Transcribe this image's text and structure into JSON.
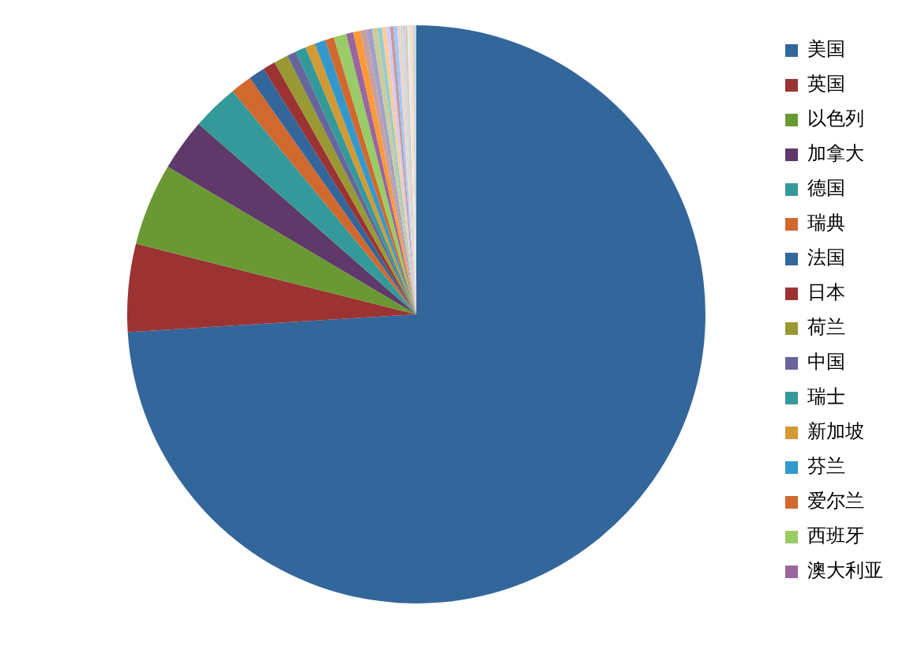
{
  "chart_data": {
    "type": "pie",
    "categories": [
      "美国",
      "英国",
      "以色列",
      "加拿大",
      "德国",
      "瑞典",
      "法国",
      "日本",
      "荷兰",
      "中国",
      "瑞士",
      "新加坡",
      "芬兰",
      "爱尔兰",
      "西班牙",
      "澳大利亚",
      null,
      null,
      null,
      null,
      null,
      null,
      null,
      null,
      null,
      null,
      null,
      null,
      null,
      null,
      null,
      null,
      null,
      null
    ],
    "values": [
      73.95,
      4.9,
      4.6,
      2.9,
      2.6,
      1.2,
      0.9,
      0.7,
      0.8,
      0.5,
      0.6,
      0.55,
      0.6,
      0.5,
      0.7,
      0.4,
      0.4,
      0.35,
      0.3,
      0.3,
      0.25,
      0.25,
      0.2,
      0.2,
      0.2,
      0.15,
      0.15,
      0.15,
      0.1,
      0.1,
      0.1,
      0.1,
      0.1,
      0.1
    ],
    "colors": [
      "#33669b",
      "#9b3333",
      "#6a9934",
      "#5f3969",
      "#34999b",
      "#d1692f",
      "#33669b",
      "#9b3333",
      "#999933",
      "#67659b",
      "#34999b",
      "#d19a34",
      "#3399cc",
      "#d1692f",
      "#99cc66",
      "#9966a0",
      "#ff9933",
      "#c9a0a0",
      "#a0a0cc",
      "#cccc99",
      "#99cccc",
      "#ffcc99",
      "#ccccff",
      "#cc9999",
      "#99ccff",
      "#ffcccc",
      "#cce0cc",
      "#e0cce0",
      "#ccccaa",
      "#ddeeff",
      "#eeddcc",
      "#ffe0b0",
      "#d0d0d0",
      "#c0d8f0"
    ],
    "legend": "right"
  }
}
